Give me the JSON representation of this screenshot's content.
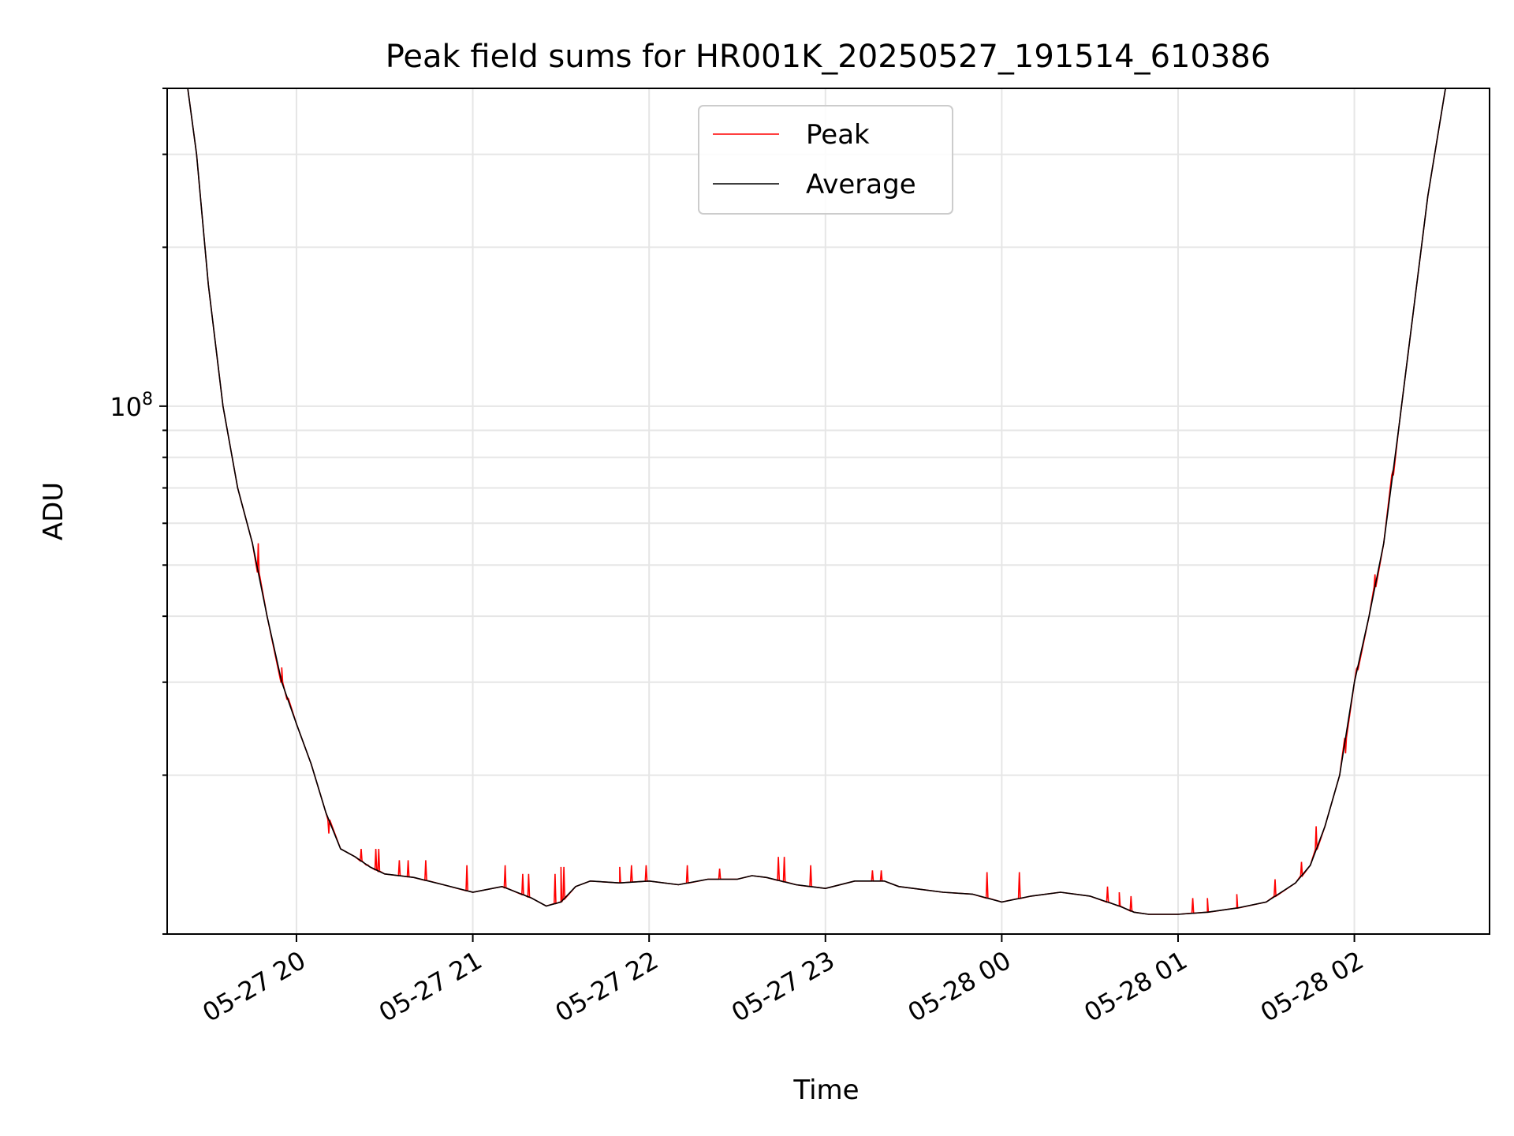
{
  "chart_data": {
    "type": "line",
    "title": "Peak field sums for HR001K_20250527_191514_610386",
    "xlabel": "Time",
    "ylabel": "ADU",
    "yscale": "log",
    "grid": true,
    "legend": {
      "placement": "upper center",
      "entries": [
        "Peak",
        "Average"
      ]
    },
    "xlim": [
      "2025-05-27 19:16",
      "2025-05-28 02:46"
    ],
    "ylim": [
      10000000,
      400000000
    ],
    "x_ticks": [
      {
        "value": "2025-05-27 20:00",
        "label": "05-27 20"
      },
      {
        "value": "2025-05-27 21:00",
        "label": "05-27 21"
      },
      {
        "value": "2025-05-27 22:00",
        "label": "05-27 22"
      },
      {
        "value": "2025-05-27 23:00",
        "label": "05-27 23"
      },
      {
        "value": "2025-05-28 00:00",
        "label": "05-28 00"
      },
      {
        "value": "2025-05-28 01:00",
        "label": "05-28 01"
      },
      {
        "value": "2025-05-28 02:00",
        "label": "05-28 02"
      }
    ],
    "y_major_ticks": [
      {
        "value": 100000000,
        "label": "10^8"
      }
    ],
    "series": [
      {
        "name": "Average",
        "color": "#000000",
        "points": [
          [
            "2025-05-27 19:16",
            400000000
          ],
          [
            "2025-05-27 19:23",
            400000000
          ],
          [
            "2025-05-27 19:26",
            300000000
          ],
          [
            "2025-05-27 19:30",
            170000000
          ],
          [
            "2025-05-27 19:35",
            100000000
          ],
          [
            "2025-05-27 19:40",
            70000000
          ],
          [
            "2025-05-27 19:45",
            55000000
          ],
          [
            "2025-05-27 19:50",
            40000000
          ],
          [
            "2025-05-27 19:55",
            30000000
          ],
          [
            "2025-05-27 20:00",
            25000000
          ],
          [
            "2025-05-27 20:05",
            21000000
          ],
          [
            "2025-05-27 20:10",
            17000000
          ],
          [
            "2025-05-27 20:15",
            14500000
          ],
          [
            "2025-05-27 20:20",
            14000000
          ],
          [
            "2025-05-27 20:25",
            13400000
          ],
          [
            "2025-05-27 20:30",
            13000000
          ],
          [
            "2025-05-27 20:40",
            12800000
          ],
          [
            "2025-05-27 20:50",
            12400000
          ],
          [
            "2025-05-27 21:00",
            12000000
          ],
          [
            "2025-05-27 21:10",
            12300000
          ],
          [
            "2025-05-27 21:20",
            11700000
          ],
          [
            "2025-05-27 21:25",
            11300000
          ],
          [
            "2025-05-27 21:30",
            11500000
          ],
          [
            "2025-05-27 21:35",
            12300000
          ],
          [
            "2025-05-27 21:40",
            12600000
          ],
          [
            "2025-05-27 21:50",
            12500000
          ],
          [
            "2025-05-27 22:00",
            12600000
          ],
          [
            "2025-05-27 22:10",
            12400000
          ],
          [
            "2025-05-27 22:20",
            12700000
          ],
          [
            "2025-05-27 22:30",
            12700000
          ],
          [
            "2025-05-27 22:35",
            12900000
          ],
          [
            "2025-05-27 22:40",
            12800000
          ],
          [
            "2025-05-27 22:50",
            12400000
          ],
          [
            "2025-05-27 23:00",
            12200000
          ],
          [
            "2025-05-27 23:10",
            12600000
          ],
          [
            "2025-05-27 23:20",
            12600000
          ],
          [
            "2025-05-27 23:25",
            12300000
          ],
          [
            "2025-05-27 23:30",
            12200000
          ],
          [
            "2025-05-27 23:40",
            12000000
          ],
          [
            "2025-05-27 23:50",
            11900000
          ],
          [
            "2025-05-28 00:00",
            11500000
          ],
          [
            "2025-05-28 00:10",
            11800000
          ],
          [
            "2025-05-28 00:20",
            12000000
          ],
          [
            "2025-05-28 00:30",
            11800000
          ],
          [
            "2025-05-28 00:40",
            11300000
          ],
          [
            "2025-05-28 00:45",
            11000000
          ],
          [
            "2025-05-28 00:50",
            10900000
          ],
          [
            "2025-05-28 01:00",
            10900000
          ],
          [
            "2025-05-28 01:10",
            11000000
          ],
          [
            "2025-05-28 01:20",
            11200000
          ],
          [
            "2025-05-28 01:30",
            11500000
          ],
          [
            "2025-05-28 01:40",
            12500000
          ],
          [
            "2025-05-28 01:45",
            13500000
          ],
          [
            "2025-05-28 01:50",
            16000000
          ],
          [
            "2025-05-28 01:55",
            20000000
          ],
          [
            "2025-05-28 02:00",
            30000000
          ],
          [
            "2025-05-28 02:05",
            40000000
          ],
          [
            "2025-05-28 02:10",
            55000000
          ],
          [
            "2025-05-28 02:15",
            90000000
          ],
          [
            "2025-05-28 02:20",
            150000000
          ],
          [
            "2025-05-28 02:25",
            250000000
          ],
          [
            "2025-05-28 02:31",
            400000000
          ],
          [
            "2025-05-28 02:46",
            400000000
          ]
        ]
      },
      {
        "name": "Peak",
        "color": "#ff0000",
        "spikes": [
          [
            "2025-05-27 19:47",
            55000000
          ],
          [
            "2025-05-27 19:55",
            32000000
          ],
          [
            "2025-05-27 19:57",
            28000000
          ],
          [
            "2025-05-27 20:11",
            15500000
          ],
          [
            "2025-05-27 20:22",
            14500000
          ],
          [
            "2025-05-27 20:24",
            13500000
          ],
          [
            "2025-05-27 20:27",
            14500000
          ],
          [
            "2025-05-27 20:28",
            14500000
          ],
          [
            "2025-05-27 20:35",
            13800000
          ],
          [
            "2025-05-27 20:38",
            13800000
          ],
          [
            "2025-05-27 20:44",
            13800000
          ],
          [
            "2025-05-27 20:58",
            13500000
          ],
          [
            "2025-05-27 21:11",
            13500000
          ],
          [
            "2025-05-27 21:17",
            13000000
          ],
          [
            "2025-05-27 21:19",
            13000000
          ],
          [
            "2025-05-27 21:28",
            13000000
          ],
          [
            "2025-05-27 21:30",
            13400000
          ],
          [
            "2025-05-27 21:31",
            13400000
          ],
          [
            "2025-05-27 21:50",
            13400000
          ],
          [
            "2025-05-27 21:54",
            13500000
          ],
          [
            "2025-05-27 21:59",
            13500000
          ],
          [
            "2025-05-27 22:13",
            13500000
          ],
          [
            "2025-05-27 22:24",
            13300000
          ],
          [
            "2025-05-27 22:44",
            14000000
          ],
          [
            "2025-05-27 22:46",
            14000000
          ],
          [
            "2025-05-27 22:55",
            13500000
          ],
          [
            "2025-05-27 23:16",
            13200000
          ],
          [
            "2025-05-27 23:19",
            13200000
          ],
          [
            "2025-05-27 23:55",
            13100000
          ],
          [
            "2025-05-28 00:06",
            13100000
          ],
          [
            "2025-05-28 00:36",
            12300000
          ],
          [
            "2025-05-28 00:40",
            12000000
          ],
          [
            "2025-05-28 00:44",
            11800000
          ],
          [
            "2025-05-28 01:05",
            11700000
          ],
          [
            "2025-05-28 01:10",
            11700000
          ],
          [
            "2025-05-28 01:20",
            11900000
          ],
          [
            "2025-05-28 01:33",
            12700000
          ],
          [
            "2025-05-28 01:42",
            13700000
          ],
          [
            "2025-05-28 01:47",
            16000000
          ],
          [
            "2025-05-28 01:57",
            22000000
          ],
          [
            "2025-05-28 02:01",
            32000000
          ],
          [
            "2025-05-28 02:07",
            48000000
          ],
          [
            "2025-05-28 02:13",
            75000000
          ]
        ]
      }
    ]
  }
}
